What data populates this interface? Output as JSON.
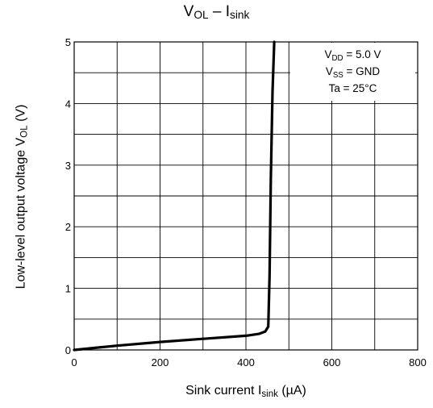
{
  "chart_data": {
    "type": "line",
    "title": {
      "main": "V",
      "main_sub": "OL",
      "sep": " – I",
      "tail_sub": "sink"
    },
    "xlabel": {
      "pre": "Sink current   I",
      "sub": "sink",
      "post": "   (µA)"
    },
    "ylabel": {
      "pre": "Low-level output voltage   V",
      "sub": "OL",
      "post": "   (V)"
    },
    "xlim": [
      0,
      800
    ],
    "ylim": [
      0,
      5
    ],
    "x_ticks": [
      "0",
      "200",
      "400",
      "600",
      "800"
    ],
    "y_ticks": [
      "0",
      "1",
      "2",
      "3",
      "4",
      "5"
    ],
    "grid": true,
    "legend_position": "top-right",
    "conditions": [
      {
        "pre": "V",
        "sub": "DD",
        "post": " = 5.0 V"
      },
      {
        "pre": "V",
        "sub": "SS",
        "post": " = GND"
      },
      {
        "pre": "Ta = 25°C",
        "sub": "",
        "post": ""
      }
    ],
    "series": [
      {
        "x": [
          0,
          100,
          200,
          300,
          400,
          430,
          445,
          452,
          455,
          458,
          462,
          466
        ],
        "y": [
          0,
          0.07,
          0.13,
          0.18,
          0.23,
          0.26,
          0.3,
          0.38,
          1.2,
          2.8,
          4.2,
          5.0
        ]
      }
    ],
    "line_color": "#000000"
  }
}
